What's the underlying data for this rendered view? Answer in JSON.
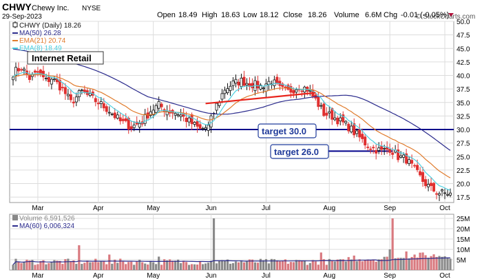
{
  "header": {
    "symbol": "CHWY",
    "company": "Chewy Inc.",
    "exchange": "NYSE",
    "date": "29-Sep-2023",
    "watermark": "© StockCharts.com",
    "ohlc_text": {
      "open_label": "Open",
      "open": "18.49",
      "high_label": "High",
      "high": "18.63",
      "low_label": "Low",
      "low": "18.12",
      "close_label": "Close",
      "close": "18.26",
      "volume_label": "Volume",
      "volume": "6.6M",
      "chg_label": "Chg",
      "chg": "-0.01 (-0.05%)"
    }
  },
  "legend": {
    "main": [
      {
        "text": "CHWY (Daily) 18.26",
        "color": "#111111",
        "style": "candle"
      },
      {
        "text": "MA(50) 26.28",
        "color": "#2a2a8c",
        "style": "line"
      },
      {
        "text": "EMA(21) 20.74",
        "color": "#e07b2c",
        "style": "line"
      },
      {
        "text": "EMA(8) 18.49",
        "color": "#4dd0e1",
        "style": "line"
      }
    ],
    "volume": [
      {
        "text": "Volume 6,591,526",
        "color": "#888888",
        "style": "box"
      },
      {
        "text": "MA(60) 6,006,324",
        "color": "#2a2a8c",
        "style": "line"
      }
    ]
  },
  "annotations": {
    "sector_label": "Internet Retail",
    "target1": "target 30.0",
    "target2": "target 26.0"
  },
  "colors": {
    "up": "#111111",
    "down": "#e03030",
    "ma50": "#2a2a8c",
    "ema21": "#e07b2c",
    "ema8": "#4dd0e1",
    "hline": "#00008b",
    "trendline": "#e8241c",
    "grid": "#dcdcdc",
    "vol_up": "#8a8a8a",
    "vol_down": "#d9797f",
    "target_box": "#1f3a9a"
  },
  "chart_data": {
    "type": "candlestick",
    "y_axis": {
      "min": 16.5,
      "max": 50.0,
      "ticks": [
        "17.5",
        "20.0",
        "22.5",
        "25.0",
        "27.5",
        "30.0",
        "32.5",
        "35.0",
        "37.5",
        "40.0",
        "42.5",
        "45.0",
        "47.5",
        "50.0"
      ]
    },
    "volume_axis": {
      "max": 27000000,
      "ticks": [
        "5M",
        "10M",
        "15M",
        "20M",
        "25M"
      ],
      "tick_values": [
        5000000,
        10000000,
        15000000,
        20000000,
        25000000
      ]
    },
    "x_axis": {
      "month_labels": [
        "Mar",
        "Apr",
        "May",
        "Jun",
        "Jul",
        "Aug",
        "Sep",
        "Oct"
      ],
      "month_start_index": [
        9,
        31,
        51,
        72,
        92,
        115,
        137,
        157
      ]
    },
    "horizontal_lines": [
      {
        "value": 30.0,
        "label": "target 30.0"
      }
    ],
    "support_lines": [
      {
        "value": 26.0,
        "label": "target 26.0",
        "from_index": 128,
        "to_index": 138
      }
    ],
    "trend_line": {
      "from_index": 70,
      "from_value": 34.8,
      "to_index": 110,
      "to_value": 36.8
    },
    "moving_average_names": [
      "MA(50)",
      "EMA(21)",
      "EMA(8)"
    ],
    "volume_average_name": "MA(60)",
    "anchors": [
      [
        0,
        40.5
      ],
      [
        3,
        41.5
      ],
      [
        6,
        39.5
      ],
      [
        9,
        40.5
      ],
      [
        12,
        39.0
      ],
      [
        14,
        39.5
      ],
      [
        18,
        37.5
      ],
      [
        21,
        35.0
      ],
      [
        25,
        37.0
      ],
      [
        28,
        36.0
      ],
      [
        31,
        35.0
      ],
      [
        35,
        33.5
      ],
      [
        39,
        31.5
      ],
      [
        43,
        30.5
      ],
      [
        47,
        31.5
      ],
      [
        50,
        33.5
      ],
      [
        53,
        34.5
      ],
      [
        56,
        33.5
      ],
      [
        60,
        33.0
      ],
      [
        64,
        31.5
      ],
      [
        68,
        30.0
      ],
      [
        71,
        30.5
      ],
      [
        74,
        34.5
      ],
      [
        77,
        37.5
      ],
      [
        80,
        38.5
      ],
      [
        83,
        39.0
      ],
      [
        86,
        38.5
      ],
      [
        90,
        38.0
      ],
      [
        94,
        39.0
      ],
      [
        97,
        37.5
      ],
      [
        100,
        37.0
      ],
      [
        104,
        38.0
      ],
      [
        107,
        37.5
      ],
      [
        110,
        35.5
      ],
      [
        113,
        33.0
      ],
      [
        116,
        32.5
      ],
      [
        119,
        31.5
      ],
      [
        122,
        30.5
      ],
      [
        125,
        29.0
      ],
      [
        128,
        27.5
      ],
      [
        131,
        26.5
      ],
      [
        134,
        26.0
      ],
      [
        137,
        26.5
      ],
      [
        140,
        25.0
      ],
      [
        143,
        24.5
      ],
      [
        146,
        22.5
      ],
      [
        149,
        20.5
      ],
      [
        152,
        19.0
      ],
      [
        155,
        18.3
      ],
      [
        157,
        18.2
      ],
      [
        159,
        18.26
      ]
    ],
    "volume_spikes": [
      {
        "index": 24,
        "value": 12000000,
        "up": false
      },
      {
        "index": 73,
        "value": 25000000,
        "up": true
      },
      {
        "index": 138,
        "value": 25000000,
        "up": false
      },
      {
        "index": 137,
        "value": 10000000,
        "up": true
      },
      {
        "index": 112,
        "value": 8500000,
        "up": false
      },
      {
        "index": 143,
        "value": 9000000,
        "up": false
      },
      {
        "index": 149,
        "value": 8500000,
        "up": false
      },
      {
        "index": 124,
        "value": 7000000,
        "up": false
      },
      {
        "index": 35,
        "value": 7500000,
        "up": false
      },
      {
        "index": 53,
        "value": 6500000,
        "up": true
      }
    ],
    "num_bars": 160
  }
}
